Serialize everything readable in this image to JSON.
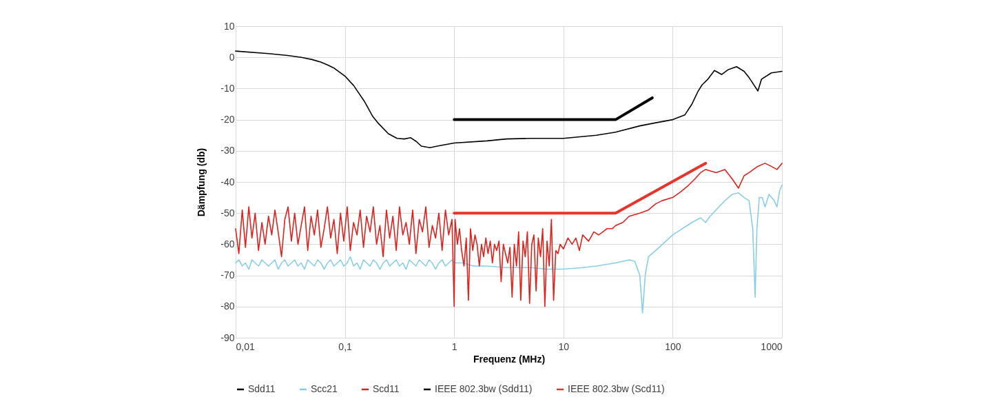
{
  "chart_data": {
    "type": "line",
    "xlabel": "Frequenz (MHz)",
    "ylabel": "Dämpfung (db)",
    "log": "x",
    "grid": true,
    "legend": "bottom",
    "xlim": [
      0.01,
      1000
    ],
    "ylim": [
      -90,
      10
    ],
    "xticks": [
      {
        "value": 0.01,
        "label": "0,01"
      },
      {
        "value": 0.1,
        "label": "0,1"
      },
      1,
      10,
      100,
      {
        "value": 1000,
        "label": "1000"
      }
    ],
    "yticks": [
      -90,
      -80,
      -70,
      -60,
      -50,
      -40,
      -30,
      -20,
      -10,
      0,
      10
    ],
    "series": [
      {
        "name": "Sdd11",
        "color": "#000000",
        "x": [
          0.01,
          0.02,
          0.03,
          0.04,
          0.05,
          0.06,
          0.07,
          0.08,
          0.1,
          0.12,
          0.15,
          0.18,
          0.2,
          0.25,
          0.3,
          0.35,
          0.4,
          0.45,
          0.5,
          0.6,
          0.7,
          1,
          2,
          3,
          5,
          10,
          20,
          30,
          50,
          70,
          100,
          129,
          150,
          170,
          186,
          210,
          241,
          280,
          320,
          384,
          450,
          500,
          602,
          650,
          800,
          1000
        ],
        "values": [
          2,
          1.2,
          0.6,
          0,
          -0.7,
          -1.5,
          -2.5,
          -3.5,
          -6,
          -9,
          -14,
          -19,
          -21,
          -24.5,
          -26,
          -26.2,
          -25.8,
          -27,
          -28.5,
          -29,
          -28.5,
          -27.5,
          -26.8,
          -26.2,
          -26,
          -26,
          -25,
          -24,
          -22,
          -21,
          -20,
          -18.5,
          -15,
          -11,
          -8.8,
          -7,
          -4.2,
          -5.5,
          -4,
          -3,
          -4.5,
          -6.5,
          -10.8,
          -7,
          -5,
          -4.5
        ]
      },
      {
        "name": "Scc21",
        "color": "#87ceeb",
        "x": [
          0.01,
          0.0107,
          0.0115,
          0.0123,
          0.0132,
          0.0141,
          0.0151,
          0.0162,
          0.0174,
          0.0186,
          0.02,
          0.0214,
          0.0229,
          0.0245,
          0.0263,
          0.0282,
          0.0302,
          0.0324,
          0.0347,
          0.0372,
          0.0398,
          0.0427,
          0.0457,
          0.049,
          0.0525,
          0.0562,
          0.0603,
          0.0646,
          0.0692,
          0.0741,
          0.0794,
          0.0851,
          0.0912,
          0.0977,
          0.105,
          0.112,
          0.12,
          0.129,
          0.138,
          0.148,
          0.158,
          0.17,
          0.182,
          0.195,
          0.209,
          0.224,
          0.24,
          0.257,
          0.275,
          0.295,
          0.316,
          0.339,
          0.363,
          0.389,
          0.417,
          0.447,
          0.479,
          0.513,
          0.55,
          0.589,
          0.631,
          0.676,
          0.724,
          0.776,
          0.832,
          0.891,
          0.955,
          1,
          1.2,
          1.5,
          2,
          3,
          5,
          7,
          10,
          15,
          20,
          30,
          40,
          45,
          50,
          53,
          56,
          60,
          70,
          100,
          150,
          180,
          200,
          220,
          300,
          350,
          400,
          450,
          500,
          540,
          568,
          590,
          620,
          660,
          700,
          760,
          850,
          900,
          950,
          1000
        ],
        "values": [
          -66,
          -65,
          -67,
          -66,
          -68,
          -65,
          -66,
          -67,
          -65,
          -66,
          -67,
          -66,
          -65,
          -68,
          -66,
          -65,
          -67,
          -66,
          -65,
          -67,
          -66,
          -68,
          -65,
          -66,
          -67,
          -65,
          -66,
          -68,
          -66,
          -65,
          -67,
          -66,
          -65,
          -67,
          -66,
          -64,
          -67,
          -66,
          -68,
          -65,
          -66,
          -67,
          -65,
          -66,
          -68,
          -66,
          -65,
          -67,
          -66,
          -65,
          -67,
          -66,
          -68,
          -65,
          -66,
          -67,
          -65,
          -66,
          -67,
          -65,
          -66,
          -68,
          -66,
          -65,
          -67,
          -66,
          -65,
          -66,
          -66,
          -67,
          -67,
          -67.5,
          -67.5,
          -68,
          -68,
          -67.5,
          -67,
          -66,
          -65,
          -65.5,
          -70,
          -82,
          -70,
          -64,
          -62,
          -57,
          -53,
          -51.5,
          -53,
          -51,
          -46,
          -44,
          -43.5,
          -45,
          -46,
          -55,
          -77,
          -55,
          -45,
          -45,
          -48,
          -44,
          -46,
          -48,
          -43,
          -41
        ]
      },
      {
        "name": "Scd11",
        "color": "#e0201b",
        "x": [
          0.01,
          0.0107,
          0.0115,
          0.0123,
          0.0132,
          0.0141,
          0.0151,
          0.0162,
          0.0174,
          0.0186,
          0.02,
          0.0214,
          0.0229,
          0.0245,
          0.0263,
          0.0282,
          0.0302,
          0.0324,
          0.0347,
          0.0372,
          0.0398,
          0.0427,
          0.0457,
          0.049,
          0.0525,
          0.0562,
          0.0603,
          0.0646,
          0.0692,
          0.0741,
          0.0794,
          0.0851,
          0.0912,
          0.0977,
          0.105,
          0.112,
          0.12,
          0.129,
          0.138,
          0.148,
          0.158,
          0.17,
          0.182,
          0.195,
          0.209,
          0.224,
          0.24,
          0.257,
          0.275,
          0.295,
          0.316,
          0.339,
          0.363,
          0.389,
          0.417,
          0.447,
          0.479,
          0.513,
          0.55,
          0.589,
          0.631,
          0.676,
          0.724,
          0.776,
          0.832,
          0.891,
          0.955,
          1,
          1.02,
          1.07,
          1.12,
          1.17,
          1.23,
          1.29,
          1.35,
          1.41,
          1.48,
          1.55,
          1.62,
          1.7,
          1.78,
          1.86,
          1.95,
          2.04,
          2.14,
          2.24,
          2.34,
          2.45,
          2.57,
          2.69,
          2.82,
          2.95,
          3.09,
          3.24,
          3.39,
          3.55,
          3.72,
          3.89,
          4.07,
          4.27,
          4.47,
          4.68,
          4.9,
          5.13,
          5.37,
          5.62,
          5.89,
          6.17,
          6.46,
          6.76,
          7.08,
          7.41,
          7.76,
          8.13,
          8.51,
          8.91,
          9.33,
          9.77,
          10,
          11,
          12,
          13,
          14,
          15,
          17,
          19,
          21,
          23,
          25,
          28,
          30,
          35,
          40,
          50,
          60,
          70,
          80,
          100,
          120,
          140,
          160,
          180,
          200,
          250,
          300,
          350,
          400,
          450,
          500,
          600,
          700,
          800,
          900,
          1000
        ],
        "values": [
          -55,
          -63,
          -49,
          -61,
          -48,
          -58,
          -50,
          -62,
          -53,
          -60,
          -51,
          -57,
          -49,
          -56,
          -64,
          -52,
          -48,
          -59,
          -50,
          -60,
          -54,
          -48,
          -62,
          -51,
          -57,
          -49,
          -61,
          -55,
          -48,
          -58,
          -52,
          -63,
          -50,
          -59,
          -48,
          -62,
          -53,
          -57,
          -49,
          -61,
          -51,
          -56,
          -48,
          -60,
          -54,
          -64,
          -49,
          -58,
          -51,
          -62,
          -48,
          -57,
          -53,
          -60,
          -49,
          -63,
          -52,
          -56,
          -48,
          -61,
          -54,
          -58,
          -50,
          -62,
          -49,
          -57,
          -52,
          -80,
          -52,
          -60,
          -55,
          -62,
          -67,
          -58,
          -78,
          -55,
          -62,
          -57,
          -60,
          -67,
          -60,
          -64,
          -58,
          -63,
          -59,
          -66,
          -60,
          -62,
          -59,
          -72,
          -60,
          -63,
          -66,
          -61,
          -77,
          -60,
          -67,
          -56,
          -78,
          -59,
          -64,
          -56,
          -79,
          -60,
          -57,
          -75,
          -58,
          -64,
          -55,
          -80,
          -59,
          -67,
          -52,
          -78,
          -62,
          -63,
          -60,
          -61,
          -61.5,
          -58,
          -60,
          -58,
          -62,
          -57,
          -59,
          -56,
          -57,
          -56,
          -55,
          -55,
          -54,
          -53,
          -51,
          -50,
          -49,
          -47,
          -46,
          -45,
          -43,
          -41,
          -39,
          -37,
          -36,
          -37,
          -36,
          -39,
          -42,
          -38,
          -37,
          -35,
          -34,
          -35,
          -36,
          -34
        ]
      },
      {
        "name": "IEEE 802.3bw (Sdd11)",
        "color": "#000000",
        "x": [
          1,
          30,
          65
        ],
        "values": [
          -20,
          -20,
          -13
        ]
      },
      {
        "name": "IEEE 802.3bw (Scd11)",
        "color": "#e8332a",
        "x": [
          1,
          30,
          200
        ],
        "values": [
          -50,
          -50,
          -34
        ]
      }
    ]
  }
}
